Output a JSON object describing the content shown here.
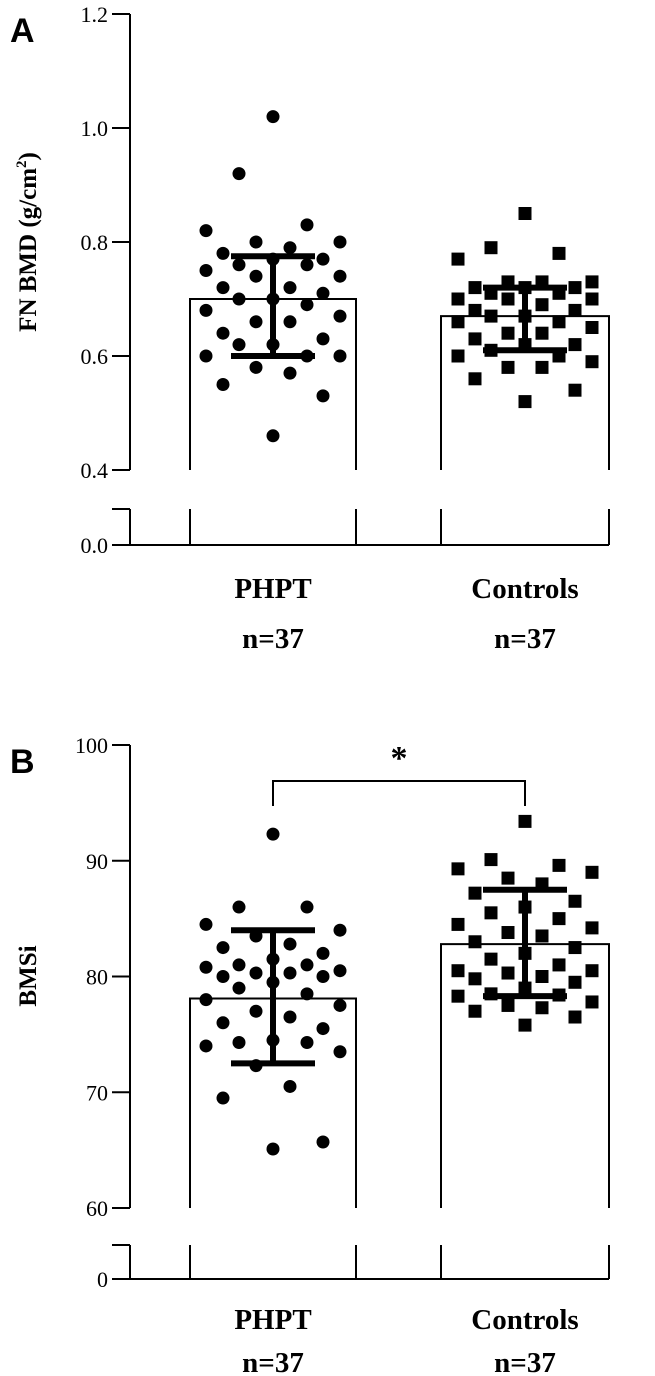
{
  "chart_data": [
    {
      "panel": "A",
      "type": "bar",
      "ylabel": "FN BMD (g/cm",
      "ylabel_sup": "2",
      "ylabel_close": ")",
      "ylim": [
        0.4,
        1.2
      ],
      "yticks": [
        "1.2",
        "1.0",
        "0.8",
        "0.6",
        "0.4"
      ],
      "break_tick": "0.0",
      "categories": [
        "PHPT",
        "Controls"
      ],
      "n_labels": [
        "n=37",
        "n=37"
      ],
      "values": [
        0.7,
        0.67
      ],
      "error_low": [
        0.6,
        0.61
      ],
      "error_high": [
        0.775,
        0.72
      ],
      "markers": [
        "circle",
        "square"
      ],
      "points": [
        [
          1.02,
          0.92,
          0.83,
          0.82,
          0.8,
          0.8,
          0.79,
          0.78,
          0.77,
          0.77,
          0.76,
          0.76,
          0.75,
          0.74,
          0.74,
          0.72,
          0.72,
          0.71,
          0.7,
          0.7,
          0.69,
          0.68,
          0.67,
          0.66,
          0.66,
          0.64,
          0.63,
          0.62,
          0.62,
          0.6,
          0.6,
          0.6,
          0.58,
          0.57,
          0.55,
          0.53,
          0.46
        ],
        [
          0.85,
          0.79,
          0.78,
          0.77,
          0.73,
          0.73,
          0.73,
          0.72,
          0.72,
          0.72,
          0.71,
          0.71,
          0.7,
          0.7,
          0.7,
          0.69,
          0.68,
          0.68,
          0.67,
          0.67,
          0.66,
          0.66,
          0.65,
          0.64,
          0.64,
          0.63,
          0.62,
          0.62,
          0.61,
          0.6,
          0.6,
          0.59,
          0.58,
          0.58,
          0.56,
          0.54,
          0.52
        ]
      ]
    },
    {
      "panel": "B",
      "type": "bar",
      "ylabel": "BMSi",
      "ylim": [
        60,
        100
      ],
      "yticks": [
        "100",
        "90",
        "80",
        "70",
        "60"
      ],
      "break_tick": "0",
      "categories": [
        "PHPT",
        "Controls"
      ],
      "n_labels": [
        "n=37",
        "n=37"
      ],
      "values": [
        78.1,
        82.8
      ],
      "error_low": [
        72.5,
        78.3
      ],
      "error_high": [
        84.0,
        87.5
      ],
      "markers": [
        "circle",
        "square"
      ],
      "significance": "*",
      "points": [
        [
          92.3,
          86.0,
          86.0,
          84.5,
          84.0,
          83.5,
          82.8,
          82.5,
          82.0,
          81.5,
          81.0,
          81.0,
          80.8,
          80.5,
          80.3,
          80.3,
          80.0,
          80.0,
          79.5,
          79.0,
          78.5,
          78.0,
          77.5,
          77.0,
          76.5,
          76.0,
          75.5,
          74.5,
          74.3,
          74.3,
          74.0,
          73.5,
          72.3,
          70.5,
          69.5,
          65.7,
          65.1
        ],
        [
          93.4,
          90.1,
          89.6,
          89.3,
          89.0,
          88.5,
          88.0,
          87.2,
          86.5,
          86.0,
          85.5,
          85.0,
          84.5,
          84.2,
          83.8,
          83.5,
          83.0,
          82.5,
          82.0,
          81.5,
          81.0,
          80.5,
          80.5,
          80.3,
          80.0,
          79.8,
          79.5,
          79.0,
          78.5,
          78.4,
          78.3,
          77.8,
          77.5,
          77.3,
          77.0,
          76.5,
          75.8
        ]
      ]
    }
  ]
}
